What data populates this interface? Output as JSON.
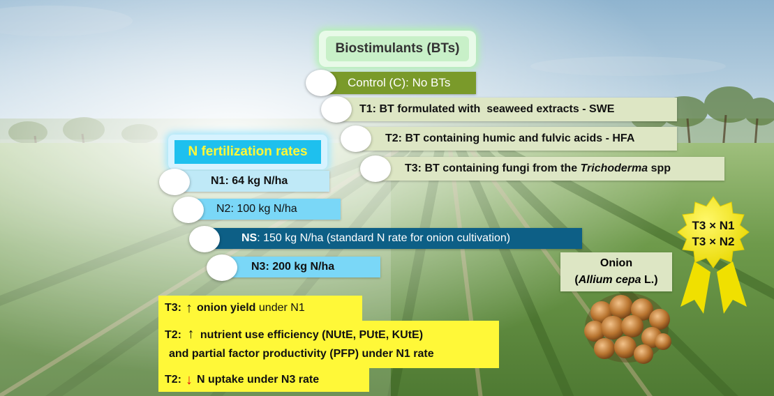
{
  "colors": {
    "bt_header_bg": "#c8f0c8",
    "control_bg": "#7a9a2a",
    "bt_light_bg": "#dde6c4",
    "n_header_bg": "#1ec0ee",
    "n_header_text": "#fff838",
    "n1_bg": "#bfe9f7",
    "n2_bg": "#7ad7f7",
    "ns_bg": "#0d5f86",
    "n3_bg": "#7ad7f7",
    "highlight_bg": "#fff838",
    "arrow_down": "#e01010"
  },
  "biostimulants": {
    "title": "Biostimulants (BTs)",
    "control": "Control (C): No BTs",
    "t1": "T1: BT formulated with  seaweed extracts - SWE",
    "t2": "T2: BT containing humic and fulvic acids - HFA",
    "t3_prefix": "T3: BT containing fungi from the ",
    "t3_italic": "Trichoderma",
    "t3_suffix": " spp"
  },
  "nitrogen": {
    "title": "N fertilization rates",
    "n1": "N1: 64 kg N/ha",
    "n2": "N2: 100 kg N/ha",
    "ns_label": "NS",
    "ns_rest": ": 150 kg N/ha (standard N rate for onion cultivation)",
    "n3": "N3: 200 kg N/ha"
  },
  "results": {
    "r1_prefix": "T3:",
    "r1_arrow": "↑",
    "r1_bold": "onion yield",
    "r1_rest": " under N1",
    "r2_prefix": "T2:",
    "r2_arrow": "↑",
    "r2_line1": "nutrient use efficiency (NUtE, PUtE, KUtE)",
    "r2_line2": "and partial factor productivity (PFP) under N1 rate",
    "r3_prefix": "T2:",
    "r3_arrow": "↓",
    "r3_rest": "N uptake under N3 rate"
  },
  "onion": {
    "name": "Onion",
    "latin_italic": "Allium cepa",
    "latin_suffix": " L.)",
    "latin_prefix": "("
  },
  "badge": {
    "line1": "T3 × N1",
    "line2": "T3 × N2"
  }
}
